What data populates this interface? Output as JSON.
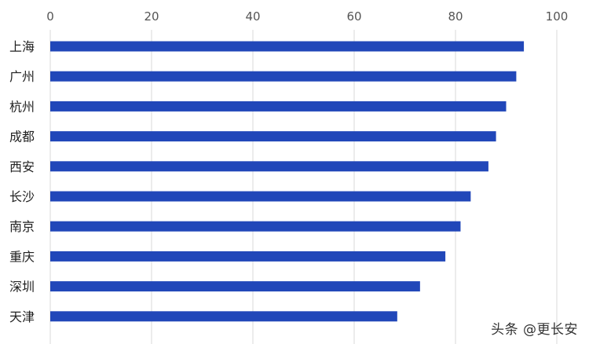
{
  "chart_data": {
    "type": "bar",
    "orientation": "horizontal",
    "categories": [
      "上海",
      "广州",
      "杭州",
      "成都",
      "西安",
      "长沙",
      "南京",
      "重庆",
      "深圳",
      "天津"
    ],
    "values": [
      93.5,
      92,
      90,
      88,
      86.5,
      83,
      81,
      78,
      73,
      68.5
    ],
    "xlim": [
      0,
      100
    ],
    "xticks": [
      0,
      20,
      40,
      60,
      80,
      100
    ],
    "grid": true,
    "bar_color": "#2147b9",
    "grid_color": "#d9d9d9"
  },
  "watermark": "头条 @更长安"
}
